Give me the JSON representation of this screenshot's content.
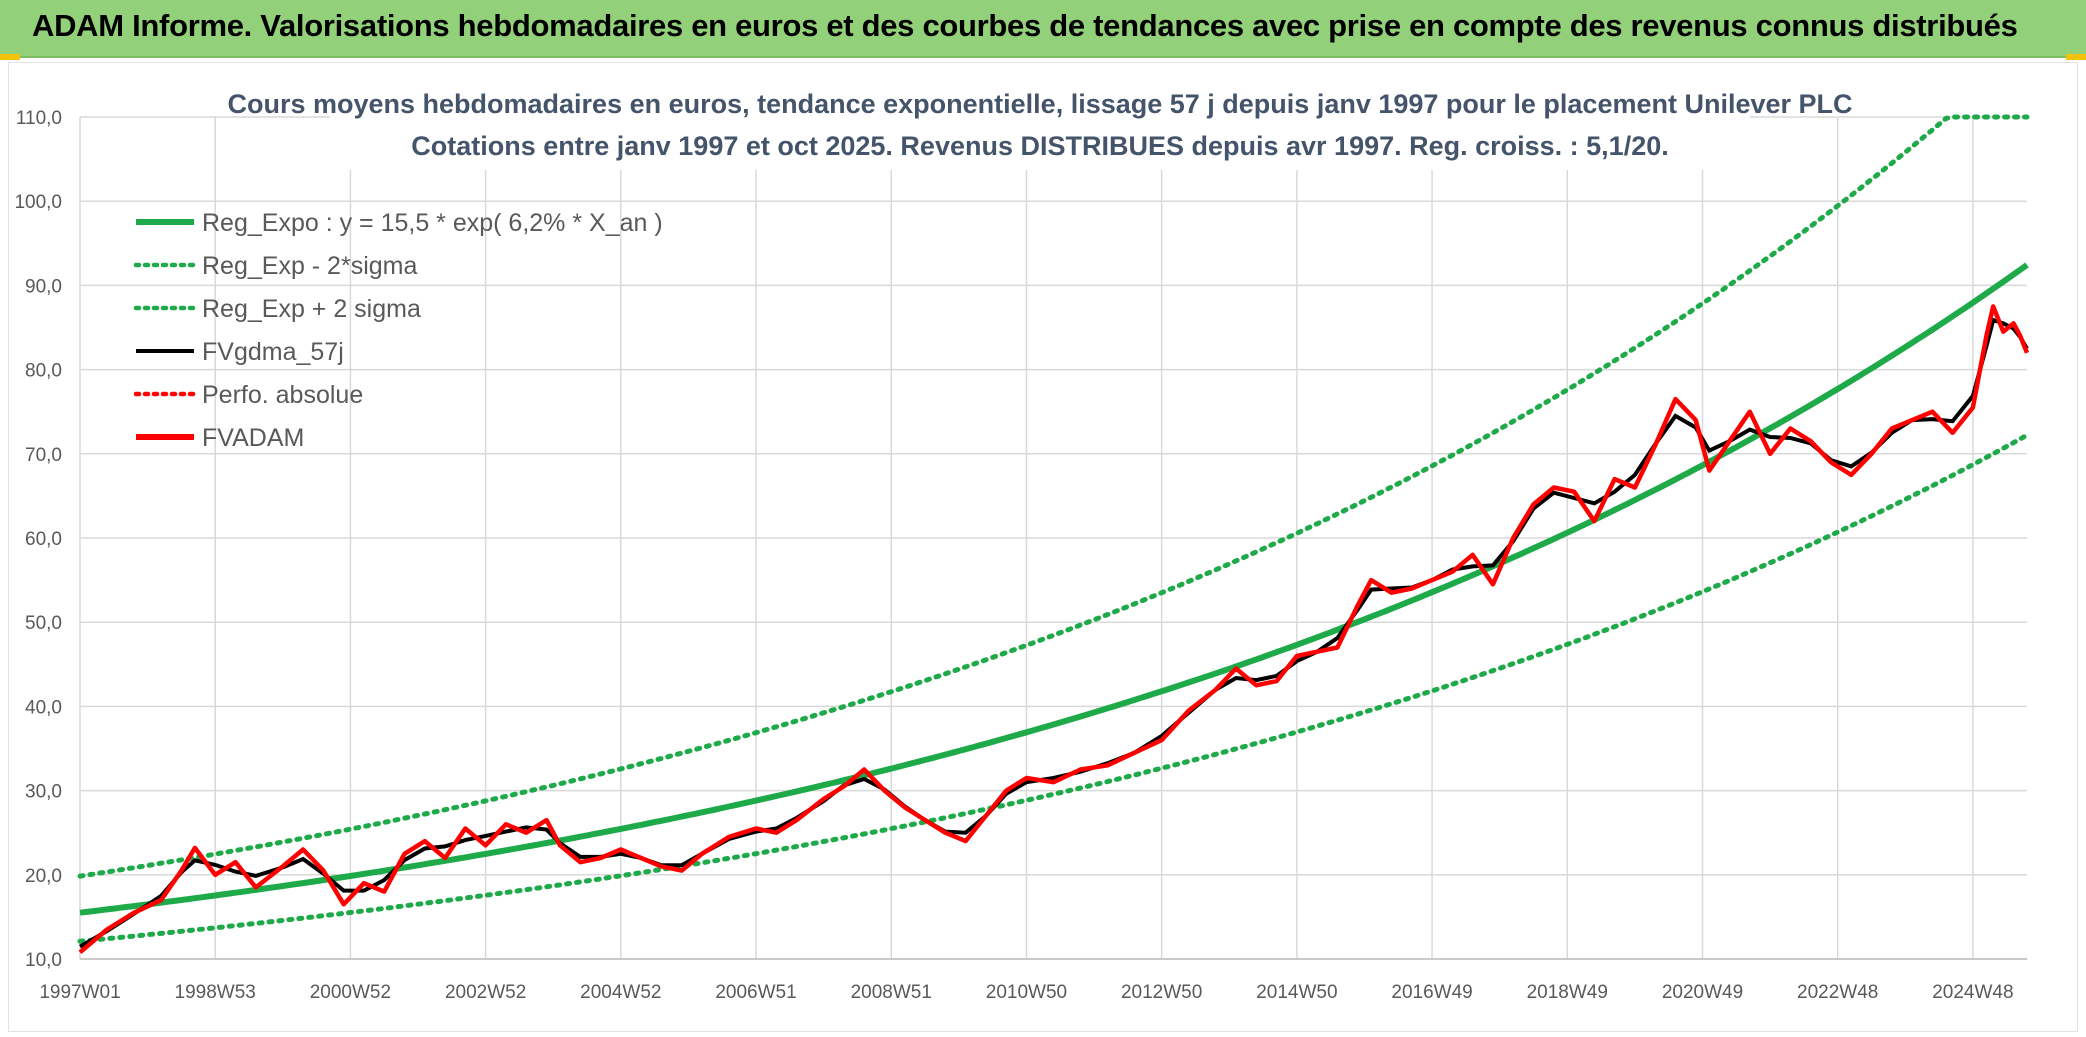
{
  "banner": {
    "title": "ADAM Informe. Valorisations hebdomadaires en euros et des courbes de tendances avec prise en compte des revenus connus distribués"
  },
  "colors": {
    "banner_bg": "#92d07a",
    "trend_green": "#1faa4a",
    "price_red": "#ff0000",
    "smooth_black": "#000000",
    "grid": "#d9d9d9",
    "title_text": "#44546a"
  },
  "chart_data": {
    "type": "line",
    "title_line1": "Cours moyens hebdomadaires en euros, tendance exponentielle, lissage 57 j depuis janv 1997 pour le placement Unilever PLC",
    "title_line2": "Cotations entre janv 1997 et oct 2025. Revenus DISTRIBUES depuis avr 1997. Reg. croiss. : 5,1/20.",
    "ylim": [
      10,
      110
    ],
    "y_ticks": [
      "10,0",
      "20,0",
      "30,0",
      "40,0",
      "50,0",
      "60,0",
      "70,0",
      "80,0",
      "90,0",
      "100,0",
      "110,0"
    ],
    "x_range_years": [
      1997.0,
      2025.8
    ],
    "x_ticks": [
      {
        "label": "1997W01",
        "year": 1997.0
      },
      {
        "label": "1998W53",
        "year": 1999.0
      },
      {
        "label": "2000W52",
        "year": 2001.0
      },
      {
        "label": "2002W52",
        "year": 2003.0
      },
      {
        "label": "2004W52",
        "year": 2005.0
      },
      {
        "label": "2006W51",
        "year": 2007.0
      },
      {
        "label": "2008W51",
        "year": 2009.0
      },
      {
        "label": "2010W50",
        "year": 2011.0
      },
      {
        "label": "2012W50",
        "year": 2013.0
      },
      {
        "label": "2014W50",
        "year": 2015.0
      },
      {
        "label": "2016W49",
        "year": 2017.0
      },
      {
        "label": "2018W49",
        "year": 2019.0
      },
      {
        "label": "2020W49",
        "year": 2021.0
      },
      {
        "label": "2022W48",
        "year": 2023.0
      },
      {
        "label": "2024W48",
        "year": 2025.0
      }
    ],
    "grid": true,
    "legend_position": "top-left",
    "regression": {
      "a": 15.5,
      "rate": 0.062,
      "sigma_factor": 1.28
    },
    "series": [
      {
        "name": "Reg_Expo : y = 15,5 * exp( 6,2% *  X_an )",
        "color": "#1faa4a",
        "style": "solid-thick"
      },
      {
        "name": "Reg_Exp - 2*sigma",
        "color": "#1faa4a",
        "style": "dotted"
      },
      {
        "name": "Reg_Exp + 2 sigma",
        "color": "#1faa4a",
        "style": "dotted"
      },
      {
        "name": "FVgdma_57j",
        "color": "#000000",
        "style": "solid"
      },
      {
        "name": "Perfo. absolue",
        "color": "#ff0000",
        "style": "dotted"
      },
      {
        "name": "FVADAM",
        "color": "#ff0000",
        "style": "solid-thick"
      }
    ],
    "fvadam_points": [
      [
        1997.0,
        10.8
      ],
      [
        1997.4,
        13.5
      ],
      [
        1997.8,
        15.5
      ],
      [
        1998.2,
        17.0
      ],
      [
        1998.5,
        20.5
      ],
      [
        1998.7,
        23.2
      ],
      [
        1999.0,
        20.0
      ],
      [
        1999.3,
        21.5
      ],
      [
        1999.6,
        18.5
      ],
      [
        2000.0,
        21.0
      ],
      [
        2000.3,
        23.0
      ],
      [
        2000.6,
        20.5
      ],
      [
        2000.9,
        16.5
      ],
      [
        2001.2,
        19.0
      ],
      [
        2001.5,
        18.0
      ],
      [
        2001.8,
        22.5
      ],
      [
        2002.1,
        24.0
      ],
      [
        2002.4,
        22.0
      ],
      [
        2002.7,
        25.5
      ],
      [
        2003.0,
        23.5
      ],
      [
        2003.3,
        26.0
      ],
      [
        2003.6,
        25.0
      ],
      [
        2003.9,
        26.5
      ],
      [
        2004.1,
        23.5
      ],
      [
        2004.4,
        21.5
      ],
      [
        2004.7,
        22.0
      ],
      [
        2005.0,
        23.0
      ],
      [
        2005.3,
        22.0
      ],
      [
        2005.6,
        21.0
      ],
      [
        2005.9,
        20.5
      ],
      [
        2006.2,
        22.5
      ],
      [
        2006.6,
        24.5
      ],
      [
        2007.0,
        25.5
      ],
      [
        2007.3,
        25.0
      ],
      [
        2007.6,
        26.5
      ],
      [
        2008.0,
        29.0
      ],
      [
        2008.3,
        30.5
      ],
      [
        2008.6,
        32.5
      ],
      [
        2008.9,
        30.0
      ],
      [
        2009.2,
        28.0
      ],
      [
        2009.5,
        26.5
      ],
      [
        2009.8,
        25.0
      ],
      [
        2010.1,
        24.0
      ],
      [
        2010.4,
        27.0
      ],
      [
        2010.7,
        30.0
      ],
      [
        2011.0,
        31.5
      ],
      [
        2011.4,
        31.0
      ],
      [
        2011.8,
        32.5
      ],
      [
        2012.2,
        33.0
      ],
      [
        2012.6,
        34.5
      ],
      [
        2013.0,
        36.0
      ],
      [
        2013.4,
        39.5
      ],
      [
        2013.8,
        42.0
      ],
      [
        2014.1,
        44.5
      ],
      [
        2014.4,
        42.5
      ],
      [
        2014.7,
        43.0
      ],
      [
        2015.0,
        46.0
      ],
      [
        2015.3,
        46.5
      ],
      [
        2015.6,
        47.0
      ],
      [
        2015.9,
        52.0
      ],
      [
        2016.1,
        55.0
      ],
      [
        2016.4,
        53.5
      ],
      [
        2016.7,
        54.0
      ],
      [
        2017.0,
        55.0
      ],
      [
        2017.3,
        56.0
      ],
      [
        2017.6,
        58.0
      ],
      [
        2017.9,
        54.5
      ],
      [
        2018.2,
        60.0
      ],
      [
        2018.5,
        64.0
      ],
      [
        2018.8,
        66.0
      ],
      [
        2019.1,
        65.5
      ],
      [
        2019.4,
        62.0
      ],
      [
        2019.7,
        67.0
      ],
      [
        2020.0,
        66.0
      ],
      [
        2020.3,
        71.0
      ],
      [
        2020.6,
        76.5
      ],
      [
        2020.9,
        74.0
      ],
      [
        2021.1,
        68.0
      ],
      [
        2021.4,
        71.5
      ],
      [
        2021.7,
        75.0
      ],
      [
        2022.0,
        70.0
      ],
      [
        2022.3,
        73.0
      ],
      [
        2022.6,
        71.5
      ],
      [
        2022.9,
        69.0
      ],
      [
        2023.2,
        67.5
      ],
      [
        2023.5,
        70.0
      ],
      [
        2023.8,
        73.0
      ],
      [
        2024.1,
        74.0
      ],
      [
        2024.4,
        75.0
      ],
      [
        2024.7,
        72.5
      ],
      [
        2025.0,
        75.5
      ],
      [
        2025.2,
        84.0
      ],
      [
        2025.3,
        87.5
      ],
      [
        2025.45,
        84.5
      ],
      [
        2025.6,
        85.5
      ],
      [
        2025.7,
        84.0
      ],
      [
        2025.8,
        82.0
      ]
    ]
  }
}
